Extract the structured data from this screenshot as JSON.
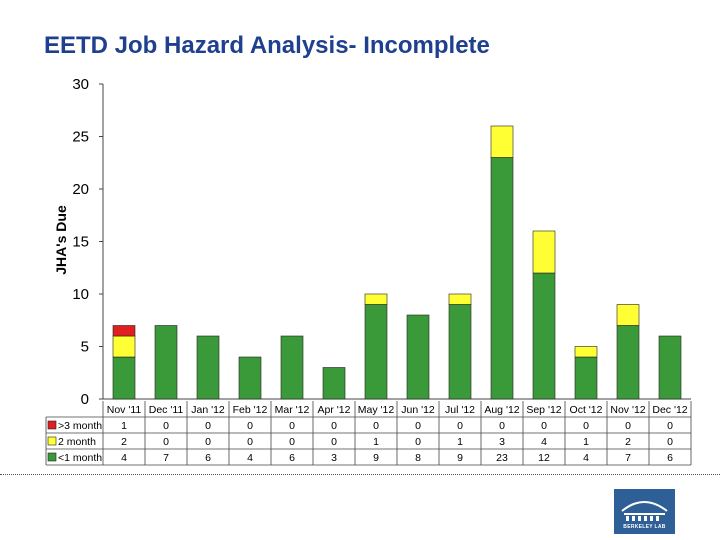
{
  "title": "EETD Job Hazard Analysis- Incomplete",
  "logo_text": "BERKELEY LAB",
  "chart_data": {
    "type": "bar",
    "stacked": true,
    "title": "EETD Job Hazard Analysis- Incomplete",
    "xlabel": "",
    "ylabel": "JHA's Due",
    "ylim": [
      0,
      30
    ],
    "yticks": [
      0,
      5,
      10,
      15,
      20,
      25,
      30
    ],
    "grid": false,
    "legend": "data-table",
    "categories": [
      "Nov '11",
      "Dec '11",
      "Jan '12",
      "Feb '12",
      "Mar '12",
      "Apr '12",
      "May '12",
      "Jun '12",
      "Jul '12",
      "Aug '12",
      "Sep '12",
      "Oct '12",
      "Nov '12",
      "Dec '12"
    ],
    "series": [
      {
        "name": "<1 month",
        "color": "#3a9a3a",
        "values": [
          4,
          7,
          6,
          4,
          6,
          3,
          9,
          8,
          9,
          23,
          12,
          4,
          7,
          6
        ]
      },
      {
        "name": "2 month",
        "color": "#ffff33",
        "values": [
          2,
          0,
          0,
          0,
          0,
          0,
          1,
          0,
          1,
          3,
          4,
          1,
          2,
          0
        ]
      },
      {
        "name": ">3 month",
        "color": "#e02020",
        "values": [
          1,
          0,
          0,
          0,
          0,
          0,
          0,
          0,
          0,
          0,
          0,
          0,
          0,
          0
        ]
      }
    ],
    "table_row_order": [
      ">3 month",
      "2 month",
      "<1 month"
    ]
  }
}
